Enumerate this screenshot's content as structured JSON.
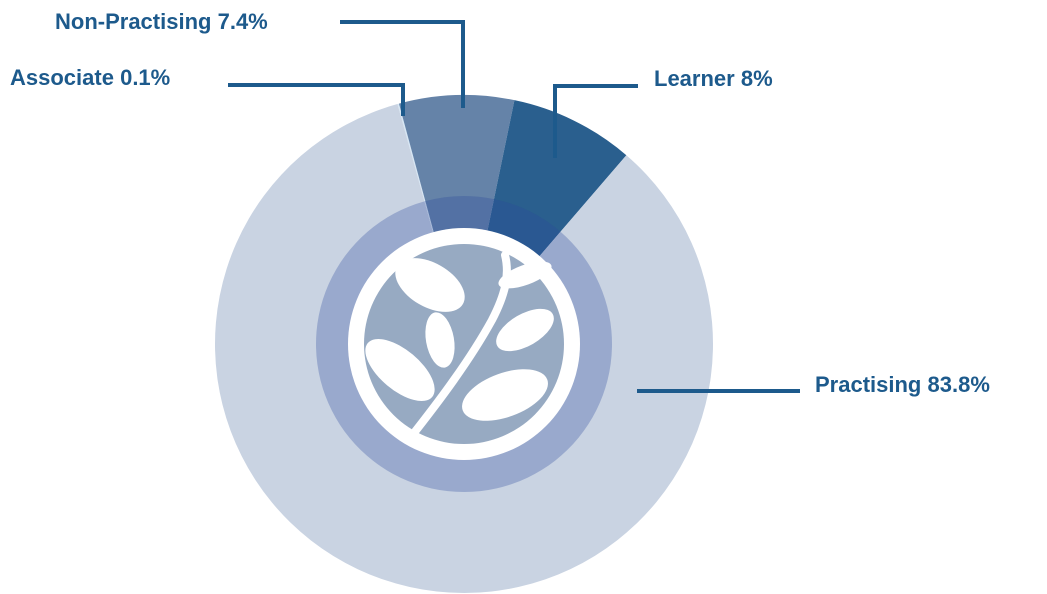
{
  "chart_data": {
    "type": "donut",
    "categories": [
      "Associate",
      "Non-Practising",
      "Learner",
      "Practising"
    ],
    "values": [
      0.1,
      7.4,
      8,
      83.8
    ],
    "value_labels": [
      "0.1%",
      "7.4%",
      "8%",
      "83.8%"
    ],
    "colors": [
      "#d6e6f4",
      "#6583a8",
      "#2a5f8e",
      "#c9d3e2"
    ]
  }
}
